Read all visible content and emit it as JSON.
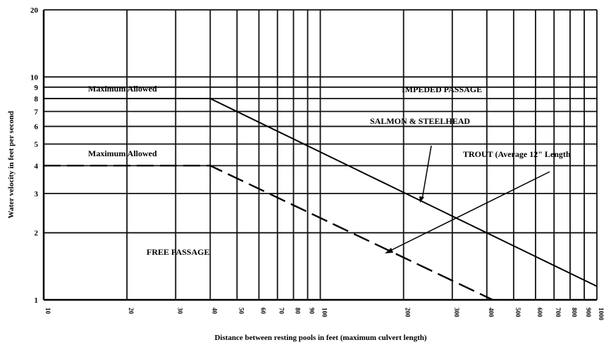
{
  "chart_data": {
    "type": "line",
    "title": "",
    "xlabel": "Distance between resting pools in feet  (maximum culvert length)",
    "ylabel": "Water velocity in feet per second",
    "x_scale": "log",
    "y_scale": "log",
    "xlim": [
      10,
      1000
    ],
    "ylim": [
      1,
      20
    ],
    "x_ticks": [
      10,
      20,
      30,
      40,
      50,
      60,
      70,
      80,
      90,
      100,
      200,
      300,
      400,
      500,
      600,
      700,
      800,
      900,
      1000
    ],
    "x_tick_labels": [
      "10",
      "20",
      "30",
      "40",
      "50",
      "60",
      "70",
      "80",
      "90",
      "100",
      "200",
      "300",
      "400",
      "500",
      "600",
      "700",
      "800",
      "900",
      "1000"
    ],
    "y_ticks": [
      1,
      2,
      3,
      4,
      5,
      6,
      7,
      8,
      9,
      10,
      20
    ],
    "y_tick_labels": [
      "1",
      "2",
      "3",
      "4",
      "5",
      "6",
      "7",
      "8",
      "9",
      "10",
      "20"
    ],
    "grid": true,
    "series": [
      {
        "x": [
          10,
          40,
          1000
        ],
        "y": [
          8,
          8,
          1.15
        ],
        "style": "solid"
      },
      {
        "x": [
          10,
          40,
          420
        ],
        "y": [
          4,
          4,
          1
        ],
        "style": "dashed"
      }
    ],
    "annotations": [
      {
        "id": "max_allowed_upper",
        "text": "Maximum Allowed"
      },
      {
        "id": "max_allowed_lower",
        "text": "Maximum Allowed"
      },
      {
        "id": "impeded",
        "text": "IMPEDED PASSAGE"
      },
      {
        "id": "salmon",
        "text": "SALMON & STEELHEAD"
      },
      {
        "id": "trout",
        "text": "TROUT (Average 12\" Length"
      },
      {
        "id": "free",
        "text": "FREE PASSAGE"
      }
    ]
  }
}
